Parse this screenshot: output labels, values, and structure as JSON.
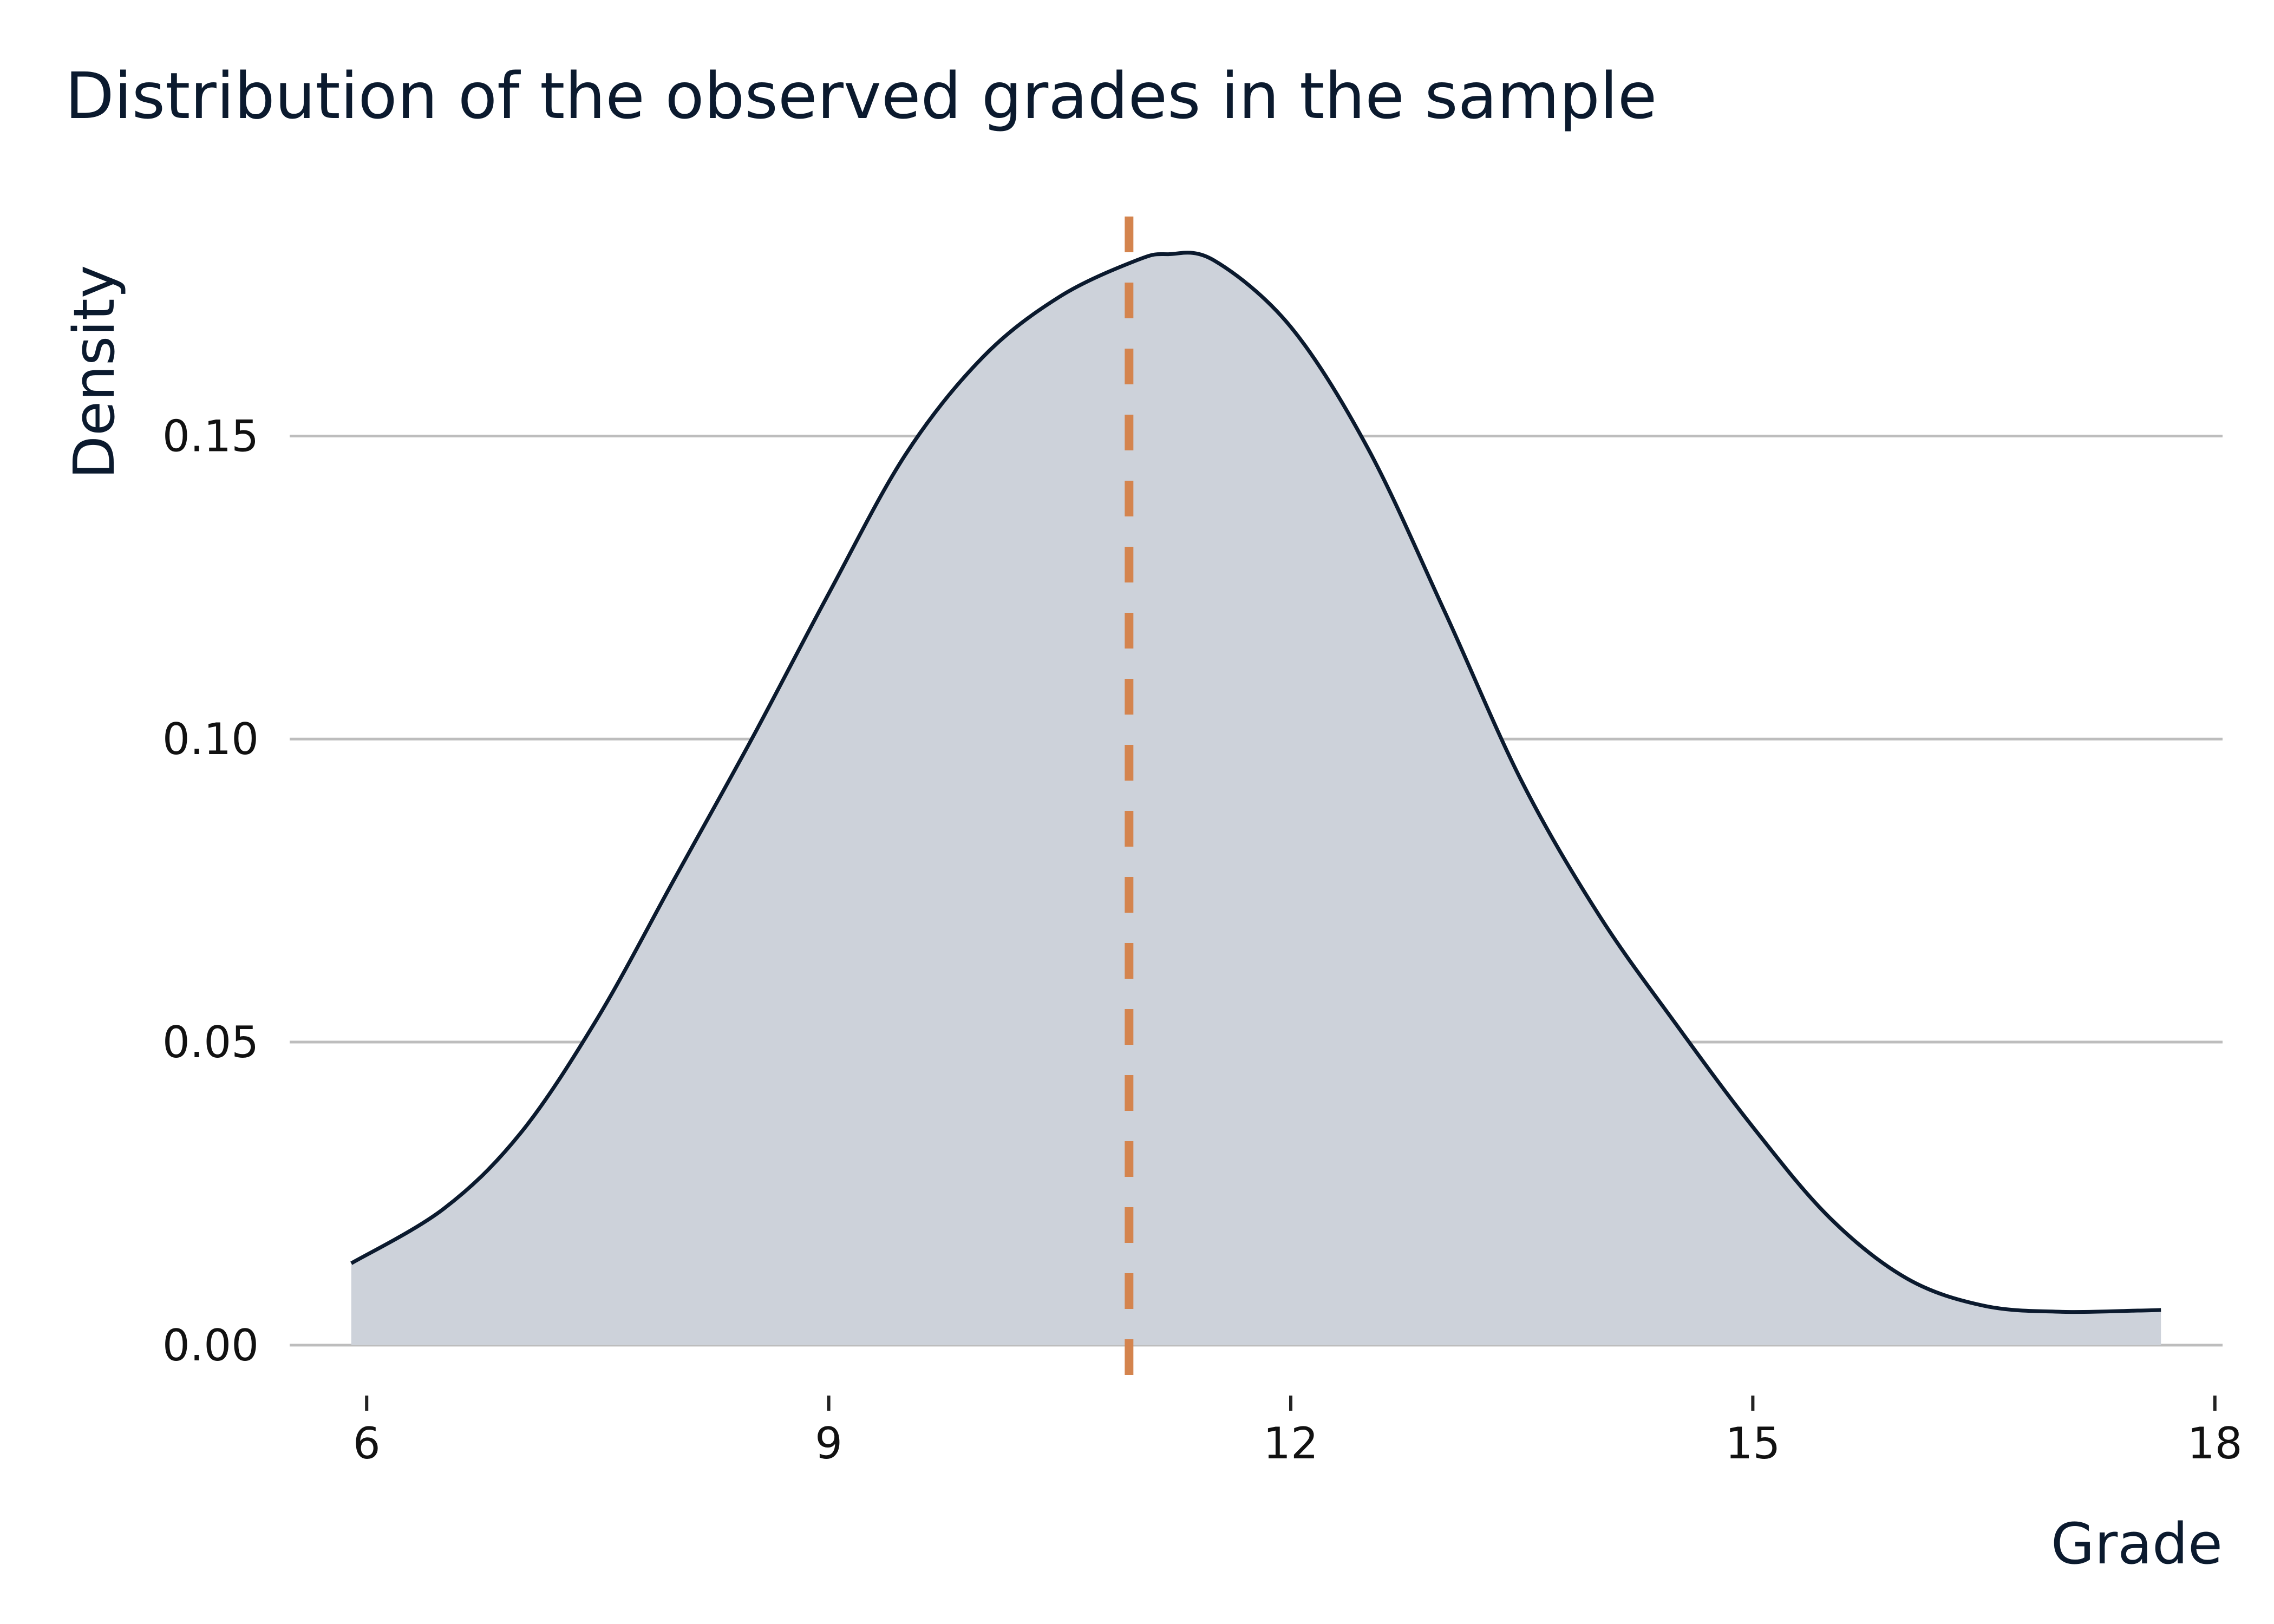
{
  "chart_data": {
    "type": "area",
    "title": "Distribution of the observed grades in the sample",
    "xlabel": "Grade",
    "ylabel": "Density",
    "xlim": [
      5.5,
      18.05
    ],
    "ylim": [
      -0.0085,
      0.188
    ],
    "x_ticks": [
      6,
      9,
      12,
      15,
      18
    ],
    "x_tick_labels": [
      "6",
      "9",
      "12",
      "15",
      "18"
    ],
    "y_ticks": [
      0.0,
      0.05,
      0.1,
      0.15
    ],
    "y_tick_labels": [
      "0.00",
      "0.05",
      "0.10",
      "0.15"
    ],
    "grid": "horizontal",
    "series": [
      {
        "x": [
          5.9,
          6.5,
          7.0,
          7.5,
          8.0,
          8.5,
          9.0,
          9.5,
          10.0,
          10.5,
          11.0,
          11.2,
          11.5,
          12.0,
          12.5,
          13.0,
          13.5,
          14.0,
          14.5,
          15.0,
          15.5,
          16.0,
          16.5,
          17.0,
          17.5,
          17.65
        ],
        "values": [
          0.0135,
          0.0225,
          0.035,
          0.054,
          0.077,
          0.1,
          0.124,
          0.147,
          0.163,
          0.173,
          0.179,
          0.18,
          0.179,
          0.168,
          0.148,
          0.121,
          0.093,
          0.071,
          0.053,
          0.036,
          0.021,
          0.011,
          0.0065,
          0.0055,
          0.0057,
          0.0058
        ]
      }
    ],
    "reference_line": {
      "x": 10.95
    },
    "colors": {
      "fill": "#cdd2da",
      "line": "#0b1a2e",
      "reference": "#d4844e"
    }
  }
}
